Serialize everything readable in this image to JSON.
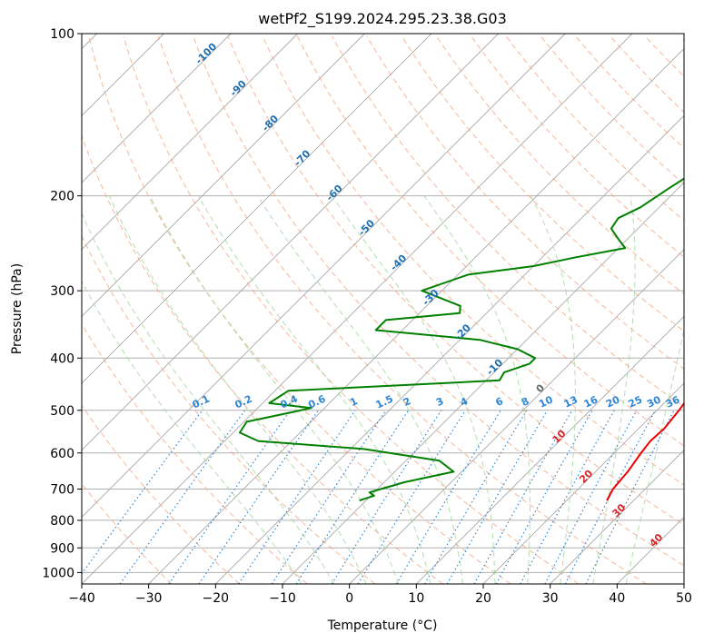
{
  "chart_data": {
    "type": "line",
    "title": "wetPf2_S199.2024.295.23.38.G03",
    "xlabel": "Temperature (°C)",
    "ylabel": "Pressure (hPa)",
    "xlim": [
      -40,
      50
    ],
    "ylim": [
      1050,
      100
    ],
    "y_scale": "log",
    "grid": true,
    "x_ticks": [
      -40,
      -30,
      -20,
      -10,
      0,
      10,
      20,
      30,
      40,
      50
    ],
    "y_ticks": [
      100,
      200,
      300,
      400,
      500,
      600,
      700,
      800,
      900,
      1000
    ],
    "colors": {
      "temperature": "#ee0000",
      "dewpoint": "#008000",
      "isotherm": "#999999",
      "dry_adiabat": "#f4a582",
      "moist_adiabat": "#a6d8a0",
      "mixing_ratio": "#2f86d6",
      "isotherm_label": "#1f6fb0",
      "moist_label": "#d62728"
    },
    "series": [
      {
        "pressure": [
          735,
          700,
          650,
          600,
          570,
          540,
          500,
          460,
          430,
          400,
          380,
          360,
          340,
          320,
          300,
          280,
          260,
          240,
          220,
          200,
          180,
          165,
          150,
          138,
          130,
          123,
          117,
          110,
          105,
          100
        ],
        "values": [
          26,
          25.2,
          24.8,
          24,
          23.6,
          23.8,
          23.3,
          22.5,
          21.5,
          20.5,
          19.5,
          18.8,
          17.3,
          15.9,
          14.4,
          12.5,
          10.8,
          9.1,
          7.3,
          5.5,
          3.7,
          2.5,
          1.3,
          0.3,
          -0.6,
          -1.2,
          -1.2,
          -0.6,
          0.5,
          0.8
        ]
      },
      {
        "pressure": [
          735,
          720,
          710,
          700,
          680,
          650,
          620,
          590,
          570,
          550,
          525,
          505,
          495,
          485,
          460,
          440,
          425,
          410,
          400,
          385,
          370,
          355,
          340,
          330,
          320,
          300,
          280,
          270,
          260,
          250,
          240,
          230,
          220,
          210,
          195,
          185,
          175,
          165,
          155,
          145,
          135,
          125,
          115,
          105,
          100
        ],
        "values": [
          -11,
          -9.5,
          -10.7,
          -9.5,
          -7,
          -1.2,
          -5,
          -18,
          -35,
          -39,
          -39.6,
          -34.5,
          -32,
          -39,
          -38,
          -8,
          -8.5,
          -6,
          -6,
          -10,
          -17,
          -34,
          -34,
          -24,
          -25,
          -33,
          -28.5,
          -20,
          -15,
          -9,
          -11.5,
          -14,
          -14.5,
          -12.8,
          -11.5,
          -10.5,
          -9.5,
          -9,
          -8,
          -7.5,
          -6,
          -5,
          -2.5,
          -1.5,
          -1.5
        ]
      }
    ],
    "isotherm_labels": [
      "-100",
      "-90",
      "-80",
      "-70",
      "-60",
      "-50",
      "-40",
      "-30",
      "-20",
      "-10",
      "0",
      "10",
      "20",
      "30",
      "40"
    ],
    "mixing_ratio_labels": [
      "0.1",
      "0.2",
      "0.4",
      "0.6",
      "1",
      "1.5",
      "2",
      "3",
      "4",
      "6",
      "8",
      "10",
      "13",
      "16",
      "20",
      "25",
      "30",
      "36"
    ]
  }
}
